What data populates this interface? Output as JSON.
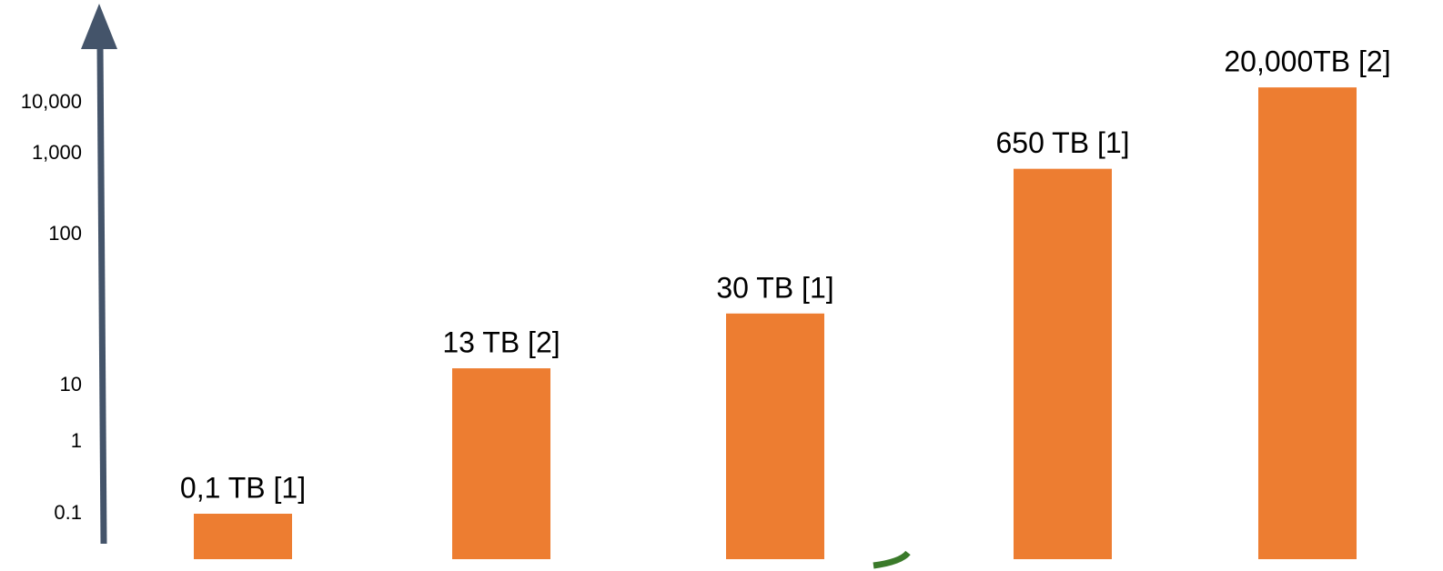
{
  "chart_data": {
    "type": "bar",
    "log_scale": true,
    "color": "#ed7d31",
    "axis_color": "#44546a",
    "categories": [
      null,
      null,
      null,
      null,
      null
    ],
    "values": [
      0.1,
      13,
      30,
      650,
      20000
    ],
    "value_labels": [
      "0,1 TB [1]",
      "13 TB [2]",
      "30 TB [1]",
      "650 TB [1]",
      "20,000TB [2]"
    ],
    "yticks": [
      {
        "value": 10000,
        "label": "10,000"
      },
      {
        "value": 1000,
        "label": "1,000"
      },
      100,
      10,
      1,
      0.1
    ]
  }
}
